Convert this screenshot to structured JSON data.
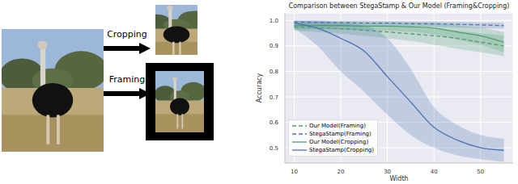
{
  "chart_data": {
    "type": "line",
    "title": "Comparison between StegaStamp & Our Model (Framing&Cropping)",
    "x_label": "Width",
    "y_label": "Accuracy",
    "x": [
      10,
      15,
      20,
      25,
      30,
      35,
      40,
      45,
      50,
      55
    ],
    "xlim": [
      8,
      57
    ],
    "xticks": [
      10,
      20,
      30,
      40,
      50
    ],
    "ylim": [
      0.44,
      1.03
    ],
    "yticks": [
      0.5,
      0.6,
      0.7,
      0.8,
      0.9,
      {
        "value": 1.0,
        "label": "1.0"
      }
    ],
    "grid": true,
    "legend": "lower left",
    "series": [
      {
        "name": "Our Model(Framing)",
        "color": "#4c9f70",
        "line_style": "dashed",
        "values": [
          0.975,
          0.972,
          0.968,
          0.962,
          0.955,
          0.948,
          0.94,
          0.93,
          0.915,
          0.9
        ],
        "lower": [
          0.96,
          0.955,
          0.948,
          0.94,
          0.93,
          0.92,
          0.905,
          0.89,
          0.875,
          0.86
        ],
        "upper": [
          0.99,
          0.988,
          0.985,
          0.982,
          0.978,
          0.972,
          0.966,
          0.96,
          0.95,
          0.94
        ]
      },
      {
        "name": "StegaStamp(Framing)",
        "color": "#4c72b0",
        "line_style": "dashed",
        "values": [
          0.995,
          0.993,
          0.992,
          0.99,
          0.99,
          0.988,
          0.987,
          0.985,
          0.983,
          0.98
        ],
        "lower": [
          0.985,
          0.983,
          0.982,
          0.98,
          0.978,
          0.976,
          0.975,
          0.972,
          0.97,
          0.968
        ],
        "upper": [
          1.0,
          1.0,
          1.0,
          1.0,
          0.998,
          0.997,
          0.996,
          0.995,
          0.993,
          0.992
        ]
      },
      {
        "name": "Our Model(Cropping)",
        "color": "#4c9f70",
        "line_style": "solid",
        "values": [
          0.98,
          0.98,
          0.98,
          0.978,
          0.978,
          0.975,
          0.97,
          0.955,
          0.94,
          0.915
        ],
        "lower": [
          0.965,
          0.965,
          0.965,
          0.962,
          0.96,
          0.955,
          0.945,
          0.925,
          0.905,
          0.875
        ],
        "upper": [
          0.995,
          0.995,
          0.995,
          0.993,
          0.993,
          0.992,
          0.99,
          0.982,
          0.972,
          0.955
        ]
      },
      {
        "name": "StegaStamp(Cropping)",
        "color": "#4c72b0",
        "line_style": "solid",
        "values": [
          0.99,
          0.97,
          0.93,
          0.88,
          0.78,
          0.68,
          0.58,
          0.53,
          0.5,
          0.49
        ],
        "lower": [
          0.97,
          0.9,
          0.8,
          0.72,
          0.63,
          0.55,
          0.5,
          0.47,
          0.455,
          0.445
        ],
        "upper": [
          1.0,
          1.0,
          0.99,
          0.98,
          0.93,
          0.81,
          0.66,
          0.59,
          0.55,
          0.535
        ]
      }
    ]
  },
  "figure": {
    "arrows": [
      {
        "label": "Cropping"
      },
      {
        "label": "Framing"
      }
    ]
  }
}
